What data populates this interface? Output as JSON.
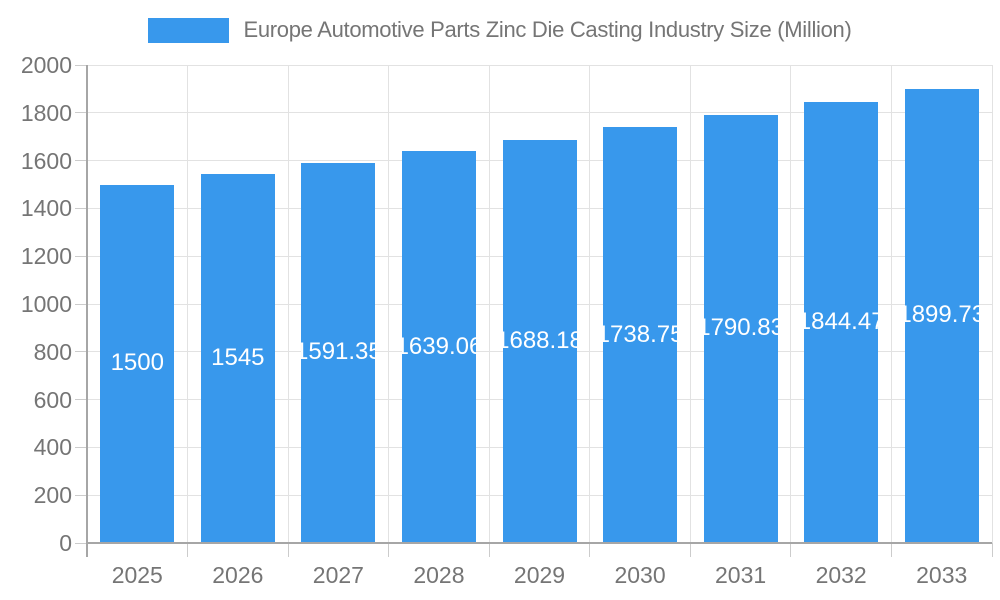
{
  "chart_data": {
    "type": "bar",
    "title": "Europe Automotive Parts Zinc Die Casting Industry Size (Million)",
    "categories": [
      "2025",
      "2026",
      "2027",
      "2028",
      "2029",
      "2030",
      "2031",
      "2032",
      "2033"
    ],
    "values": [
      1500,
      1545,
      1591.35,
      1639.06,
      1688.18,
      1738.75,
      1790.83,
      1844.47,
      1899.73
    ],
    "bar_labels": [
      "1500",
      "1545",
      "1591.35",
      "1639.06",
      "1688.18",
      "1738.75",
      "1790.83",
      "1844.47",
      "1899.73"
    ],
    "ylabel": "",
    "xlabel": "",
    "ylim": [
      0,
      2000
    ],
    "ytick_step": 200,
    "ytick_labels": [
      "0",
      "200",
      "400",
      "600",
      "800",
      "1000",
      "1200",
      "1400",
      "1600",
      "1800",
      "2000"
    ],
    "grid": true,
    "legend_position": "top",
    "colors": {
      "bar": "#3898ec",
      "grid": "#e2e2e2",
      "axis": "#a6a6a6",
      "tick": "#cccccc",
      "text": "#757575",
      "bar_label": "#ffffff",
      "background": "#ffffff"
    }
  }
}
